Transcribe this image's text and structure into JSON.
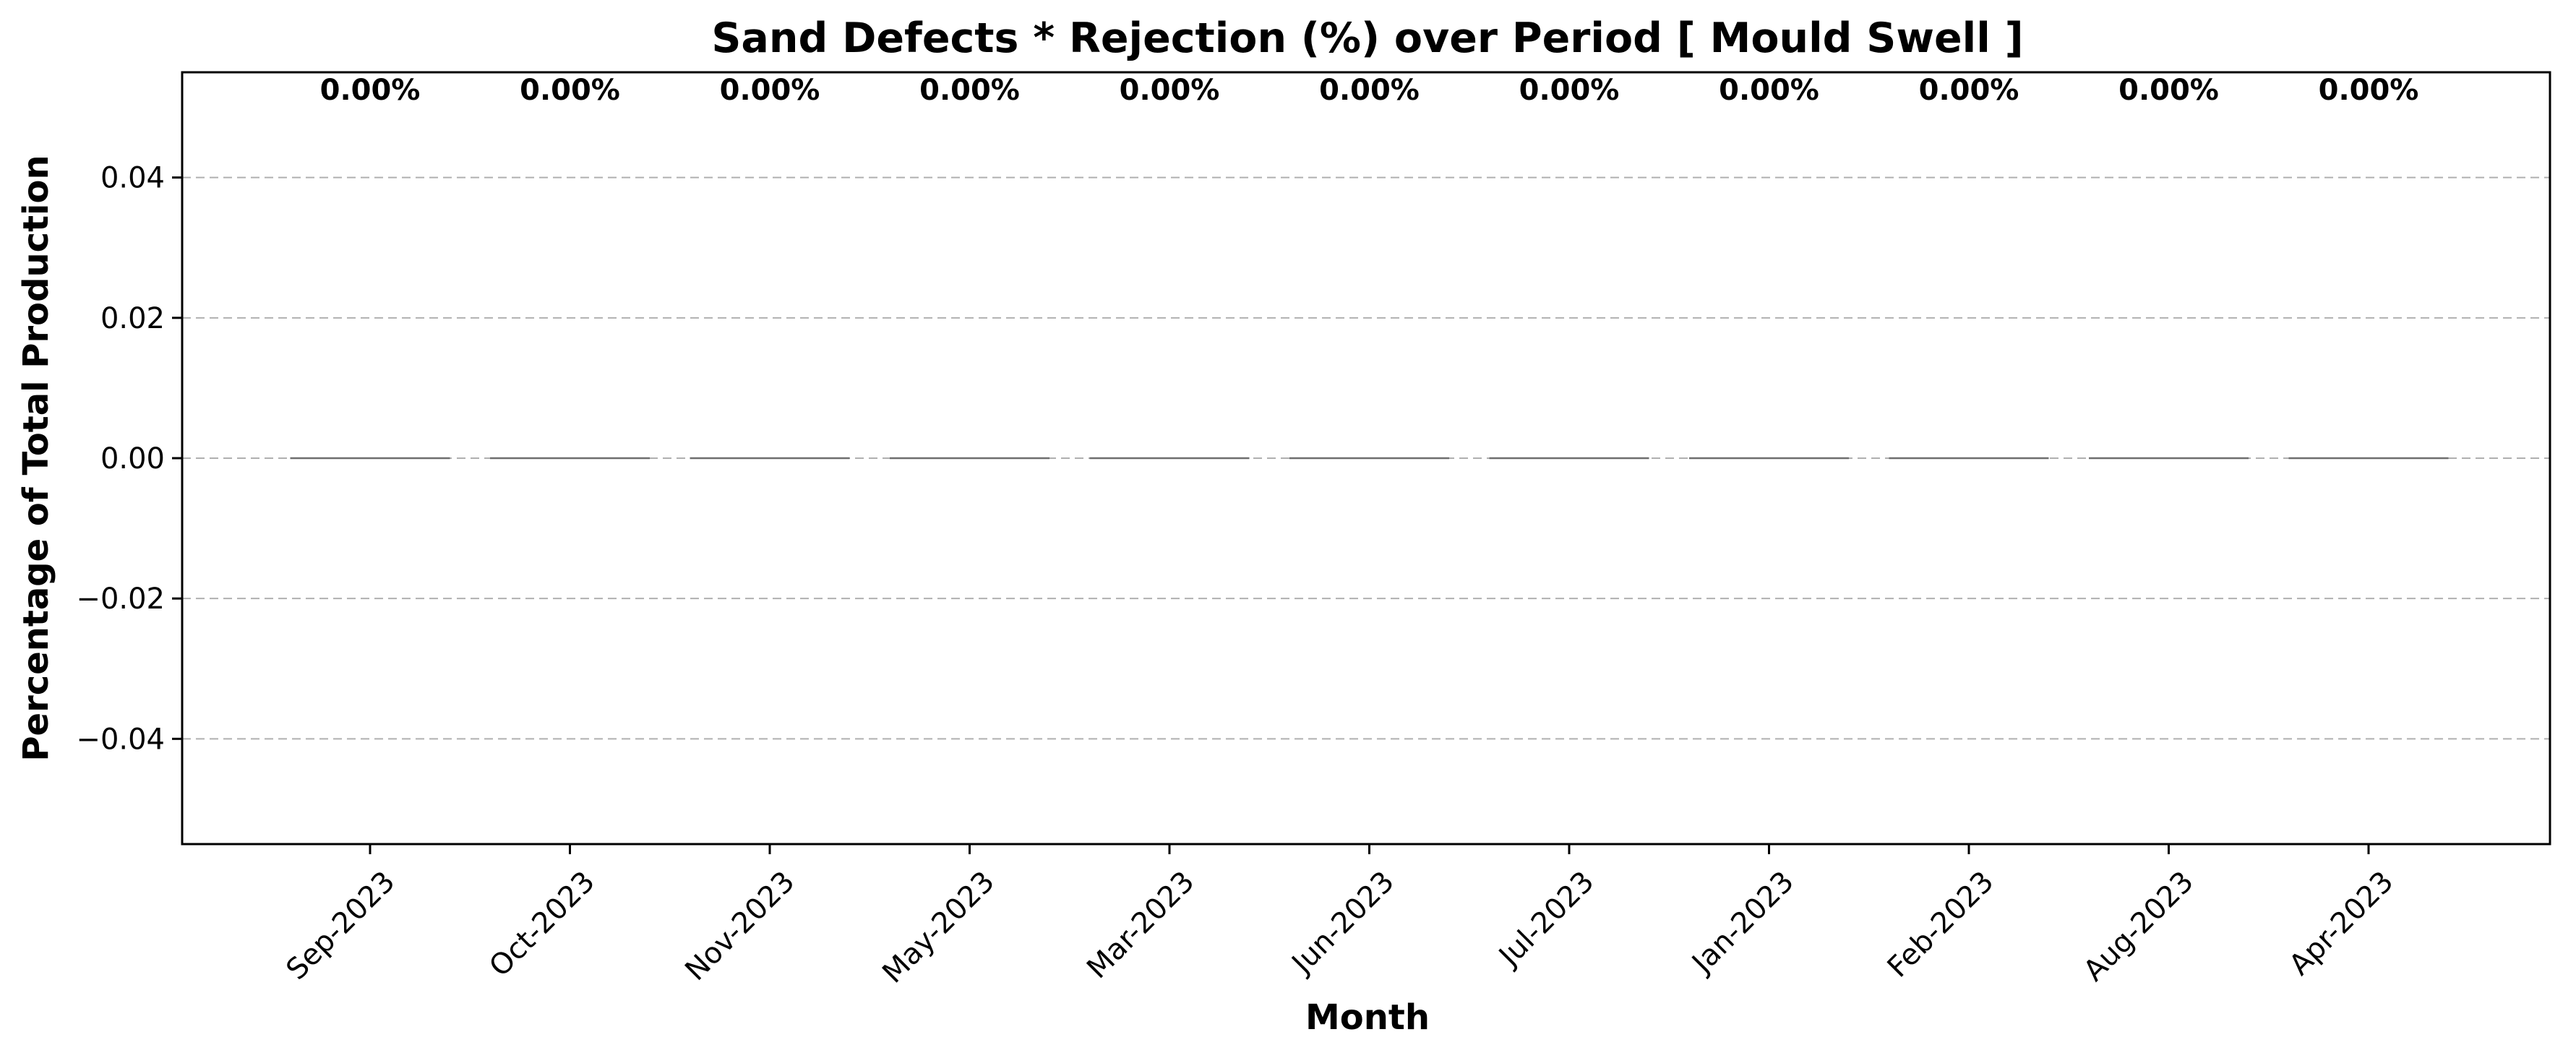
{
  "chart_data": {
    "type": "bar",
    "title": "Sand Defects * Rejection (%) over Period [ Mould Swell ]",
    "xlabel": "Month",
    "ylabel": "Percentage of Total Production",
    "categories": [
      "Sep-2023",
      "Oct-2023",
      "Nov-2023",
      "May-2023",
      "Mar-2023",
      "Jun-2023",
      "Jul-2023",
      "Jan-2023",
      "Feb-2023",
      "Aug-2023",
      "Apr-2023"
    ],
    "values": [
      0,
      0,
      0,
      0,
      0,
      0,
      0,
      0,
      0,
      0,
      0
    ],
    "data_labels": [
      "0.00%",
      "0.00%",
      "0.00%",
      "0.00%",
      "0.00%",
      "0.00%",
      "0.00%",
      "0.00%",
      "0.00%",
      "0.00%",
      "0.00%"
    ],
    "yticks": [
      -0.04,
      -0.02,
      0.0,
      0.02,
      0.04
    ],
    "ytick_labels": [
      "−0.04",
      "−0.02",
      "0.00",
      "0.02",
      "0.04"
    ],
    "ylim": [
      -0.055,
      0.055
    ],
    "grid": "y-dashed",
    "bar_color": "#5b9bd5",
    "grid_color": "#b0b0b0"
  }
}
